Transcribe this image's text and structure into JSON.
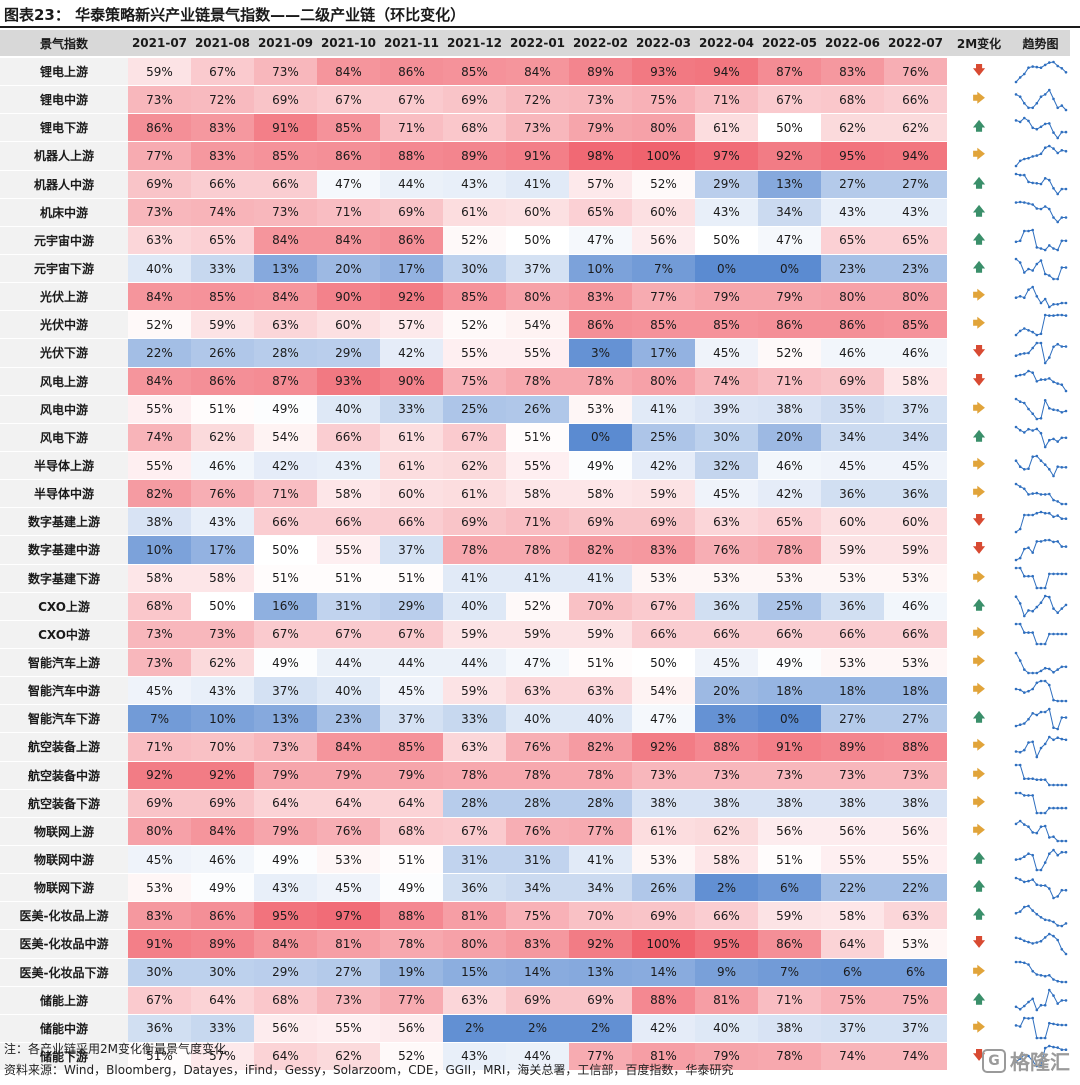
{
  "title": "图表23： 华泰策略新兴产业链景气指数——二级产业链（环比变化）",
  "headers": {
    "label": "景气指数",
    "months": [
      "2021-07",
      "2021-08",
      "2021-09",
      "2021-10",
      "2021-11",
      "2021-12",
      "2022-01",
      "2022-02",
      "2022-03",
      "2022-04",
      "2022-05",
      "2022-06",
      "2022-07"
    ],
    "change": "2M变化",
    "trend": "趋势图"
  },
  "arrow_glyphs": {
    "up": "🡅",
    "down": "🡇",
    "flat": "🡆"
  },
  "colors": {
    "high": "#f0636e",
    "mid": "#ffffff",
    "low": "#5b8bd1",
    "arrow_up": "#3a8f6a",
    "arrow_down": "#d84a32",
    "arrow_flat": "#e1a43a",
    "sparkline": "#2f6fbf"
  },
  "rows": [
    {
      "label": "锂电上游",
      "values": [
        "59%",
        "67%",
        "73%",
        "84%",
        "86%",
        "85%",
        "84%",
        "89%",
        "93%",
        "94%",
        "87%",
        "83%",
        "76%"
      ],
      "change": "down"
    },
    {
      "label": "锂电中游",
      "values": [
        "73%",
        "72%",
        "69%",
        "67%",
        "67%",
        "69%",
        "72%",
        "73%",
        "75%",
        "71%",
        "67%",
        "68%",
        "66%"
      ],
      "change": "flat"
    },
    {
      "label": "锂电下游",
      "values": [
        "86%",
        "83%",
        "91%",
        "85%",
        "71%",
        "68%",
        "73%",
        "79%",
        "80%",
        "61%",
        "50%",
        "62%",
        "62%"
      ],
      "change": "up"
    },
    {
      "label": "机器人上游",
      "values": [
        "77%",
        "83%",
        "85%",
        "86%",
        "88%",
        "89%",
        "91%",
        "98%",
        "100%",
        "97%",
        "92%",
        "95%",
        "94%"
      ],
      "change": "flat"
    },
    {
      "label": "机器人中游",
      "values": [
        "69%",
        "66%",
        "66%",
        "47%",
        "44%",
        "43%",
        "41%",
        "57%",
        "52%",
        "29%",
        "13%",
        "27%",
        "27%"
      ],
      "change": "up"
    },
    {
      "label": "机床中游",
      "values": [
        "73%",
        "74%",
        "73%",
        "71%",
        "69%",
        "61%",
        "60%",
        "65%",
        "60%",
        "43%",
        "34%",
        "43%",
        "43%"
      ],
      "change": "up"
    },
    {
      "label": "元宇宙中游",
      "values": [
        "63%",
        "65%",
        "84%",
        "84%",
        "86%",
        "52%",
        "50%",
        "47%",
        "56%",
        "50%",
        "47%",
        "65%",
        "65%"
      ],
      "change": "up"
    },
    {
      "label": "元宇宙下游",
      "values": [
        "40%",
        "33%",
        "13%",
        "20%",
        "17%",
        "30%",
        "37%",
        "10%",
        "7%",
        "0%",
        "0%",
        "23%",
        "23%"
      ],
      "change": "up"
    },
    {
      "label": "光伏上游",
      "values": [
        "84%",
        "85%",
        "84%",
        "90%",
        "92%",
        "85%",
        "80%",
        "83%",
        "77%",
        "79%",
        "79%",
        "80%",
        "80%"
      ],
      "change": "flat"
    },
    {
      "label": "光伏中游",
      "values": [
        "52%",
        "59%",
        "63%",
        "60%",
        "57%",
        "52%",
        "54%",
        "86%",
        "85%",
        "85%",
        "86%",
        "86%",
        "85%"
      ],
      "change": "flat"
    },
    {
      "label": "光伏下游",
      "values": [
        "22%",
        "26%",
        "28%",
        "29%",
        "42%",
        "55%",
        "55%",
        "3%",
        "17%",
        "45%",
        "52%",
        "46%",
        "46%"
      ],
      "change": "down"
    },
    {
      "label": "风电上游",
      "values": [
        "84%",
        "86%",
        "87%",
        "93%",
        "90%",
        "75%",
        "78%",
        "78%",
        "80%",
        "74%",
        "71%",
        "69%",
        "58%"
      ],
      "change": "down"
    },
    {
      "label": "风电中游",
      "values": [
        "55%",
        "51%",
        "49%",
        "40%",
        "33%",
        "25%",
        "26%",
        "53%",
        "41%",
        "39%",
        "38%",
        "35%",
        "37%"
      ],
      "change": "flat"
    },
    {
      "label": "风电下游",
      "values": [
        "74%",
        "62%",
        "54%",
        "66%",
        "61%",
        "67%",
        "51%",
        "0%",
        "25%",
        "30%",
        "20%",
        "34%",
        "34%"
      ],
      "change": "up"
    },
    {
      "label": "半导体上游",
      "values": [
        "55%",
        "46%",
        "42%",
        "43%",
        "61%",
        "62%",
        "55%",
        "49%",
        "42%",
        "32%",
        "46%",
        "45%",
        "45%"
      ],
      "change": "flat"
    },
    {
      "label": "半导体中游",
      "values": [
        "82%",
        "76%",
        "71%",
        "58%",
        "60%",
        "61%",
        "58%",
        "58%",
        "59%",
        "45%",
        "42%",
        "36%",
        "36%"
      ],
      "change": "flat"
    },
    {
      "label": "数字基建上游",
      "values": [
        "38%",
        "43%",
        "66%",
        "66%",
        "66%",
        "69%",
        "71%",
        "69%",
        "69%",
        "63%",
        "65%",
        "60%",
        "60%"
      ],
      "change": "down"
    },
    {
      "label": "数字基建中游",
      "values": [
        "10%",
        "17%",
        "50%",
        "55%",
        "37%",
        "78%",
        "78%",
        "82%",
        "83%",
        "76%",
        "78%",
        "59%",
        "59%"
      ],
      "change": "down"
    },
    {
      "label": "数字基建下游",
      "values": [
        "58%",
        "58%",
        "51%",
        "51%",
        "51%",
        "41%",
        "41%",
        "41%",
        "53%",
        "53%",
        "53%",
        "53%",
        "53%"
      ],
      "change": "flat"
    },
    {
      "label": "CXO上游",
      "values": [
        "68%",
        "50%",
        "16%",
        "31%",
        "29%",
        "40%",
        "52%",
        "70%",
        "67%",
        "36%",
        "25%",
        "36%",
        "46%"
      ],
      "change": "up"
    },
    {
      "label": "CXO中游",
      "values": [
        "73%",
        "73%",
        "67%",
        "67%",
        "67%",
        "59%",
        "59%",
        "59%",
        "66%",
        "66%",
        "66%",
        "66%",
        "66%"
      ],
      "change": "flat"
    },
    {
      "label": "智能汽车上游",
      "values": [
        "73%",
        "62%",
        "49%",
        "44%",
        "44%",
        "44%",
        "47%",
        "51%",
        "50%",
        "45%",
        "49%",
        "53%",
        "53%"
      ],
      "change": "flat"
    },
    {
      "label": "智能汽车中游",
      "values": [
        "45%",
        "43%",
        "37%",
        "40%",
        "45%",
        "59%",
        "63%",
        "63%",
        "54%",
        "20%",
        "18%",
        "18%",
        "18%"
      ],
      "change": "flat"
    },
    {
      "label": "智能汽车下游",
      "values": [
        "7%",
        "10%",
        "13%",
        "23%",
        "37%",
        "33%",
        "40%",
        "40%",
        "47%",
        "3%",
        "0%",
        "27%",
        "27%"
      ],
      "change": "up"
    },
    {
      "label": "航空装备上游",
      "values": [
        "71%",
        "70%",
        "73%",
        "84%",
        "85%",
        "63%",
        "76%",
        "82%",
        "92%",
        "88%",
        "91%",
        "89%",
        "88%"
      ],
      "change": "flat"
    },
    {
      "label": "航空装备中游",
      "values": [
        "92%",
        "92%",
        "79%",
        "79%",
        "79%",
        "78%",
        "78%",
        "78%",
        "73%",
        "73%",
        "73%",
        "73%",
        "73%"
      ],
      "change": "flat"
    },
    {
      "label": "航空装备下游",
      "values": [
        "69%",
        "69%",
        "64%",
        "64%",
        "64%",
        "28%",
        "28%",
        "28%",
        "38%",
        "38%",
        "38%",
        "38%",
        "38%"
      ],
      "change": "flat"
    },
    {
      "label": "物联网上游",
      "values": [
        "80%",
        "84%",
        "79%",
        "76%",
        "68%",
        "67%",
        "76%",
        "77%",
        "61%",
        "62%",
        "56%",
        "56%",
        "56%"
      ],
      "change": "flat"
    },
    {
      "label": "物联网中游",
      "values": [
        "45%",
        "46%",
        "49%",
        "53%",
        "51%",
        "31%",
        "31%",
        "41%",
        "53%",
        "58%",
        "51%",
        "55%",
        "55%"
      ],
      "change": "up"
    },
    {
      "label": "物联网下游",
      "values": [
        "53%",
        "49%",
        "43%",
        "45%",
        "49%",
        "36%",
        "34%",
        "34%",
        "26%",
        "2%",
        "6%",
        "22%",
        "22%"
      ],
      "change": "up"
    },
    {
      "label": "医美-化妆品上游",
      "values": [
        "83%",
        "86%",
        "95%",
        "97%",
        "88%",
        "81%",
        "75%",
        "70%",
        "69%",
        "66%",
        "59%",
        "58%",
        "63%"
      ],
      "change": "up"
    },
    {
      "label": "医美-化妆品中游",
      "values": [
        "91%",
        "89%",
        "84%",
        "81%",
        "78%",
        "80%",
        "83%",
        "92%",
        "100%",
        "95%",
        "86%",
        "64%",
        "53%"
      ],
      "change": "down"
    },
    {
      "label": "医美-化妆品下游",
      "values": [
        "30%",
        "30%",
        "29%",
        "27%",
        "19%",
        "15%",
        "14%",
        "13%",
        "14%",
        "9%",
        "7%",
        "6%",
        "6%"
      ],
      "change": "flat"
    },
    {
      "label": "储能上游",
      "values": [
        "67%",
        "64%",
        "68%",
        "73%",
        "77%",
        "63%",
        "69%",
        "69%",
        "88%",
        "81%",
        "71%",
        "75%",
        "75%"
      ],
      "change": "up"
    },
    {
      "label": "储能中游",
      "values": [
        "36%",
        "33%",
        "56%",
        "55%",
        "56%",
        "2%",
        "2%",
        "2%",
        "42%",
        "40%",
        "38%",
        "37%",
        "37%"
      ],
      "change": "flat"
    },
    {
      "label": "储能下游",
      "values": [
        "51%",
        "57%",
        "64%",
        "62%",
        "52%",
        "43%",
        "44%",
        "77%",
        "81%",
        "79%",
        "78%",
        "74%",
        "74%"
      ],
      "change": "down"
    }
  ],
  "footnote": "注：各产业链采用2M变化衡量景气度变化",
  "source": "资料来源：Wind，Bloomberg，Datayes，iFind，Gessy，Solarzoom，CDE，GGII，MRI，海关总署，工信部，百度指数，华泰研究",
  "watermark": "格隆汇",
  "watermark_logo": "G"
}
